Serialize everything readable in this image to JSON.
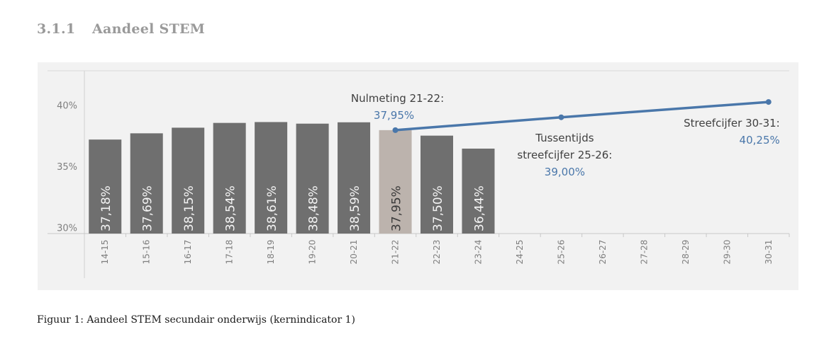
{
  "heading": {
    "number": "3.1.1",
    "title": "Aandeel STEM"
  },
  "caption": "Figuur 1: Aandeel STEM secundair onderwijs (kernindicator 1)",
  "colors": {
    "bar": "#6f6f6f",
    "bar_highlight": "#bcb3ad",
    "line": "#4a77aa",
    "label_blue": "#4a77aa",
    "text": "#404040",
    "axis_text": "#7f7f7f",
    "panel": "#f2f2f2"
  },
  "chart_data": {
    "type": "bar",
    "title": "",
    "xlabel": "",
    "ylabel": "",
    "ylim": [
      29.5,
      42.8
    ],
    "yticks": [
      {
        "value": 30,
        "label": "30%"
      },
      {
        "value": 35,
        "label": "35%"
      },
      {
        "value": 40,
        "label": "40%"
      }
    ],
    "categories": [
      "14-15",
      "15-16",
      "16-17",
      "17-18",
      "18-19",
      "19-20",
      "20-21",
      "21-22",
      "22-23",
      "23-24",
      "24-25",
      "25-26",
      "26-27",
      "27-28",
      "28-29",
      "29-30",
      "30-31"
    ],
    "bars": [
      {
        "category": "14-15",
        "value": 37.18,
        "label": "37,18%"
      },
      {
        "category": "15-16",
        "value": 37.69,
        "label": "37,69%"
      },
      {
        "category": "16-17",
        "value": 38.15,
        "label": "38,15%"
      },
      {
        "category": "17-18",
        "value": 38.54,
        "label": "38,54%"
      },
      {
        "category": "18-19",
        "value": 38.61,
        "label": "38,61%"
      },
      {
        "category": "19-20",
        "value": 38.48,
        "label": "38,48%"
      },
      {
        "category": "20-21",
        "value": 38.59,
        "label": "38,59%"
      },
      {
        "category": "21-22",
        "value": 37.95,
        "label": "37,95%",
        "highlight": true
      },
      {
        "category": "22-23",
        "value": 37.5,
        "label": "37,50%"
      },
      {
        "category": "23-24",
        "value": 36.44,
        "label": "36,44%"
      }
    ],
    "target_line": {
      "points": [
        {
          "category": "21-22",
          "value": 37.95
        },
        {
          "category": "25-26",
          "value": 39.0
        },
        {
          "category": "30-31",
          "value": 40.25
        }
      ]
    },
    "annotations": [
      {
        "category": "21-22",
        "value": 37.95,
        "text": "Nulmeting 21-22:",
        "value_text": "37,95%"
      },
      {
        "category": "25-26",
        "value": 39.0,
        "text": "Tussentijds",
        "text2": "streefcijfer 25-26:",
        "value_text": "39,00%"
      },
      {
        "category": "30-31",
        "value": 40.25,
        "text": "Streefcijfer 30-31:",
        "value_text": "40,25%"
      }
    ],
    "grid": false,
    "legend": "none"
  }
}
